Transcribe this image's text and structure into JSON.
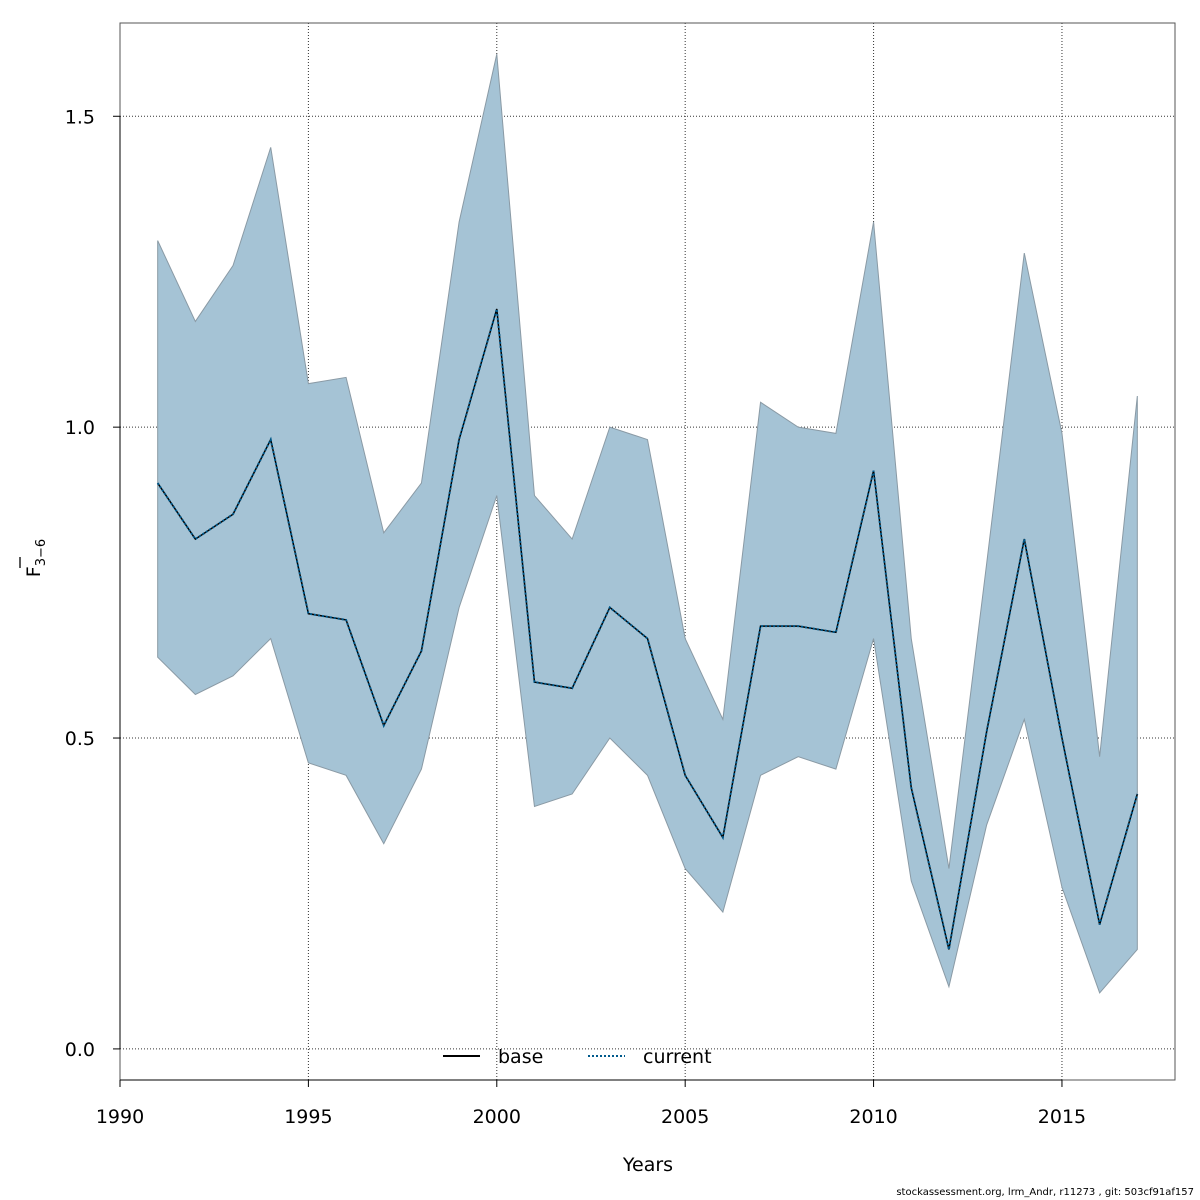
{
  "chart_data": {
    "type": "area",
    "title": "",
    "xlabel": "Years",
    "ylabel_main": "F",
    "ylabel_sub": "3−6",
    "xlim": [
      1990,
      2018
    ],
    "ylim": [
      -0.05,
      1.65
    ],
    "x_ticks": [
      1990,
      1995,
      2000,
      2005,
      2010,
      2015
    ],
    "y_ticks": [
      0.0,
      0.5,
      1.0,
      1.5
    ],
    "y_tick_labels": [
      "0.0",
      "0.5",
      "1.0",
      "1.5"
    ],
    "grid": true,
    "legend_position": "bottom",
    "band_color": "#a5c3d5",
    "band_edge_color": "#8a9aa5",
    "x": [
      1991,
      1992,
      1993,
      1994,
      1995,
      1996,
      1997,
      1998,
      1999,
      2000,
      2001,
      2002,
      2003,
      2004,
      2005,
      2006,
      2007,
      2008,
      2009,
      2010,
      2011,
      2012,
      2013,
      2014,
      2015,
      2016,
      2017
    ],
    "band_upper": [
      1.3,
      1.17,
      1.26,
      1.45,
      1.07,
      1.08,
      0.83,
      0.91,
      1.33,
      1.6,
      0.89,
      0.82,
      1.0,
      0.98,
      0.66,
      0.53,
      1.04,
      1.0,
      0.99,
      1.33,
      0.66,
      0.29,
      0.78,
      1.28,
      0.99,
      0.47,
      1.05
    ],
    "band_lower": [
      0.63,
      0.57,
      0.6,
      0.66,
      0.46,
      0.44,
      0.33,
      0.45,
      0.71,
      0.89,
      0.39,
      0.41,
      0.5,
      0.44,
      0.29,
      0.22,
      0.44,
      0.47,
      0.45,
      0.66,
      0.27,
      0.1,
      0.36,
      0.53,
      0.26,
      0.09,
      0.16
    ],
    "series": [
      {
        "name": "base",
        "style": "solid",
        "color": "#000000",
        "values": [
          0.91,
          0.82,
          0.86,
          0.98,
          0.7,
          0.69,
          0.52,
          0.64,
          0.98,
          1.19,
          0.59,
          0.58,
          0.71,
          0.66,
          0.44,
          0.34,
          0.68,
          0.68,
          0.67,
          0.93,
          0.42,
          0.16,
          0.51,
          0.82,
          0.5,
          0.2,
          0.41
        ]
      },
      {
        "name": "current",
        "style": "dotted",
        "color": "#005a8c",
        "values": [
          0.91,
          0.82,
          0.86,
          0.98,
          0.7,
          0.69,
          0.52,
          0.64,
          0.98,
          1.19,
          0.59,
          0.58,
          0.71,
          0.66,
          0.44,
          0.34,
          0.68,
          0.68,
          0.67,
          0.93,
          0.42,
          0.16,
          0.51,
          0.82,
          0.5,
          0.2,
          0.41
        ]
      }
    ]
  },
  "footer_text": "stockassessment.org, lrm_Andr, r11273 , git: 503cf91af157"
}
